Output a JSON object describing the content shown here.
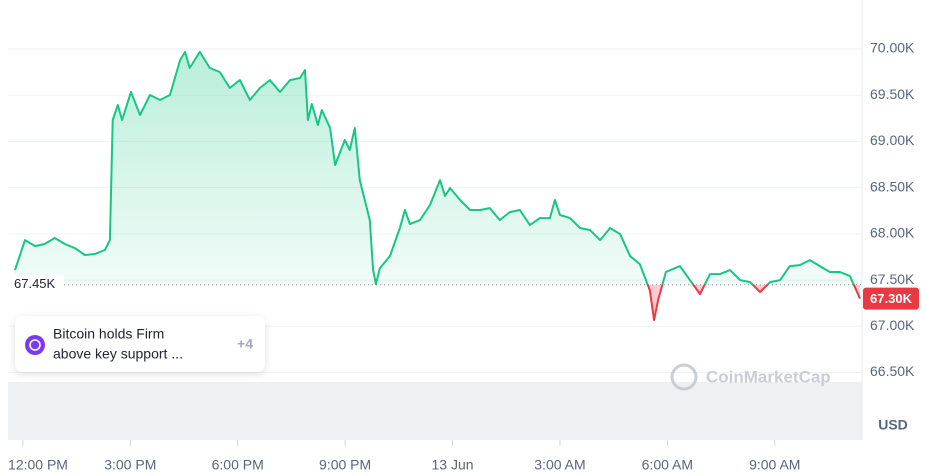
{
  "chart_data": {
    "type": "line",
    "x": [
      -0.22,
      0.06,
      0.34,
      0.61,
      0.89,
      1.17,
      1.45,
      1.73,
      2.01,
      2.29,
      2.43,
      2.51,
      2.65,
      2.77,
      3.02,
      3.27,
      3.55,
      3.83,
      4.11,
      4.39,
      4.53,
      4.66,
      4.94,
      5.22,
      5.5,
      5.78,
      6.06,
      6.34,
      6.62,
      6.9,
      7.18,
      7.46,
      7.74,
      7.88,
      7.96,
      8.07,
      8.24,
      8.35,
      8.58,
      8.72,
      8.99,
      9.13,
      9.27,
      9.41,
      9.69,
      9.78,
      9.86,
      9.97,
      10.25,
      10.53,
      10.67,
      10.81,
      11.09,
      11.37,
      11.65,
      11.79,
      11.93,
      12.21,
      12.49,
      12.77,
      13.04,
      13.32,
      13.6,
      13.88,
      14.16,
      14.44,
      14.72,
      14.86,
      15.0,
      15.28,
      15.56,
      15.84,
      16.12,
      16.4,
      16.68,
      16.96,
      17.23,
      17.51,
      17.63,
      17.74,
      17.96,
      18.35,
      18.63,
      18.91,
      19.19,
      19.47,
      19.75,
      20.03,
      20.31,
      20.59,
      20.87,
      21.15,
      21.42,
      21.7,
      21.98,
      22.26,
      22.54,
      22.82,
      23.1,
      23.38
    ],
    "values": [
      67608,
      67933,
      67868,
      67890,
      67955,
      67890,
      67846,
      67771,
      67782,
      67825,
      67933,
      69232,
      69394,
      69232,
      69535,
      69286,
      69502,
      69448,
      69502,
      69881,
      69968,
      69794,
      69968,
      69794,
      69751,
      69578,
      69664,
      69448,
      69578,
      69664,
      69535,
      69664,
      69686,
      69773,
      69232,
      69405,
      69178,
      69340,
      69145,
      68745,
      69015,
      68907,
      69145,
      68582,
      68149,
      67608,
      67457,
      67630,
      67760,
      68063,
      68258,
      68106,
      68149,
      68312,
      68582,
      68409,
      68496,
      68366,
      68258,
      68258,
      68279,
      68149,
      68236,
      68258,
      68095,
      68171,
      68171,
      68366,
      68204,
      68171,
      68063,
      68041,
      67933,
      68063,
      67998,
      67760,
      67673,
      67392,
      67067,
      67284,
      67587,
      67651,
      67500,
      67348,
      67565,
      67565,
      67608,
      67500,
      67478,
      67370,
      67478,
      67500,
      67651,
      67662,
      67716,
      67651,
      67587,
      67587,
      67543,
      67300
    ],
    "up_color": "#16c784",
    "down_color": "#ea3943",
    "xlim": [
      -0.22,
      23.38
    ],
    "xticks": [
      {
        "value": 0,
        "label": "12:00 PM"
      },
      {
        "value": 3,
        "label": "3:00 PM"
      },
      {
        "value": 6,
        "label": "6:00 PM"
      },
      {
        "value": 9,
        "label": "9:00 PM"
      },
      {
        "value": 12,
        "label": "13 Jun"
      },
      {
        "value": 15,
        "label": "3:00 AM"
      },
      {
        "value": 18,
        "label": "6:00 AM"
      },
      {
        "value": 21,
        "label": "9:00 AM"
      }
    ],
    "ylim": [
      65770,
      70530
    ],
    "yticks": [
      {
        "value": 70000,
        "label": "70.00K"
      },
      {
        "value": 69500,
        "label": "69.50K"
      },
      {
        "value": 69000,
        "label": "69.00K"
      },
      {
        "value": 68500,
        "label": "68.50K"
      },
      {
        "value": 68000,
        "label": "68.00K"
      },
      {
        "value": 67500,
        "label": "67.50K"
      },
      {
        "value": 67000,
        "label": "67.00K"
      },
      {
        "value": 66500,
        "label": "66.50K"
      }
    ],
    "grid": true,
    "y_unit": "USD",
    "reference": {
      "value": 67450,
      "label": "67.45K"
    },
    "current": {
      "value": 67300,
      "label": "67.30K"
    },
    "watermark": "CoinMarketCap",
    "news": {
      "lines": [
        "Bitcoin holds Firm",
        "above key support ..."
      ],
      "more": "+4"
    }
  }
}
